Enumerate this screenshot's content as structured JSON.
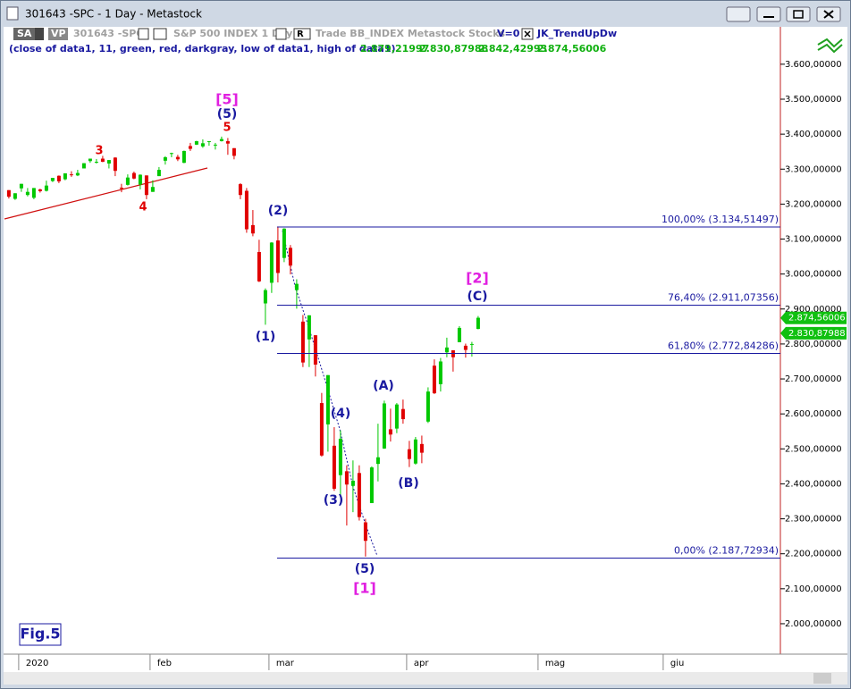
{
  "window": {
    "title": "301643 -SPC - 1 Day - Metastock"
  },
  "toolbar": {
    "sa": "SA",
    "vp": "VP",
    "symbol": "301643 -SPC",
    "name": "S&P 500 INDEX  1 Day",
    "r": "R",
    "source": "Trade  BB_INDEX  Metastock  Stocks",
    "v": "V=0",
    "indicator": "JK_TrendUpDw"
  },
  "indicator_line": {
    "params": "(close of data1, 11, green, red, darkgray, low of data1, high of data1)",
    "values": [
      "2.879,21997",
      "2.830,87988",
      "2.842,42993",
      "2.874,56006"
    ]
  },
  "chart_data": {
    "type": "candlestick",
    "up_color": "#00c800",
    "down_color": "#e00000",
    "open": [
      3240,
      3215,
      3245,
      3226,
      3218,
      3242,
      3238,
      3266,
      3281,
      3271,
      3285,
      3282,
      3302,
      3323,
      3321,
      3330,
      3316,
      3333,
      3247,
      3255,
      3289,
      3256,
      3282,
      3235,
      3280,
      3324,
      3344,
      3335,
      3318,
      3366,
      3370,
      3365,
      3378,
      3370,
      3380,
      3380,
      3360,
      3257,
      3238,
      3140,
      3063,
      2916,
      2975,
      3096,
      3046,
      3075,
      2954,
      2864,
      2813,
      2825,
      2631,
      2570,
      2509,
      2425,
      2436,
      2394,
      2431,
      2290,
      2345,
      2457,
      2501,
      2556,
      2558,
      2614,
      2499,
      2458,
      2514,
      2578,
      2738,
      2685,
      2776,
      2782,
      2805,
      2795,
      2800,
      2843
    ],
    "high": [
      3240,
      3231,
      3258,
      3246,
      3246,
      3244,
      3267,
      3275,
      3282,
      3288,
      3294,
      3298,
      3317,
      3330,
      3329,
      3338,
      3326,
      3334,
      3258,
      3285,
      3293,
      3285,
      3282,
      3268,
      3306,
      3337,
      3347,
      3341,
      3353,
      3375,
      3381,
      3385,
      3380,
      3375,
      3393,
      3389,
      3360,
      3260,
      3246,
      3183,
      3098,
      2959,
      3091,
      3136,
      3131,
      3083,
      2985,
      2883,
      2882,
      2825,
      2660,
      2711,
      2562,
      2553,
      2453,
      2467,
      2453,
      2300,
      2450,
      2572,
      2638,
      2615,
      2631,
      2641,
      2523,
      2534,
      2538,
      2676,
      2756,
      2760,
      2818,
      2782,
      2851,
      2801,
      2806,
      2880
    ],
    "low": [
      3216,
      3212,
      3235,
      3222,
      3214,
      3233,
      3236,
      3263,
      3260,
      3268,
      3278,
      3280,
      3302,
      3318,
      3316,
      3320,
      3302,
      3280,
      3234,
      3253,
      3271,
      3242,
      3214,
      3235,
      3280,
      3313,
      3334,
      3323,
      3317,
      3352,
      3369,
      3361,
      3367,
      3356,
      3379,
      3341,
      3328,
      3214,
      3118,
      3108,
      2977,
      2855,
      2946,
      2976,
      3034,
      2999,
      2901,
      2734,
      2734,
      2707,
      2478,
      2492,
      2380,
      2367,
      2281,
      2319,
      2295,
      2192,
      2345,
      2407,
      2500,
      2521,
      2545,
      2572,
      2448,
      2455,
      2459,
      2574,
      2657,
      2664,
      2762,
      2721,
      2805,
      2761,
      2764,
      2842
    ],
    "close": [
      3221,
      3231,
      3258,
      3235,
      3246,
      3237,
      3253,
      3275,
      3265,
      3288,
      3283,
      3289,
      3317,
      3330,
      3321,
      3321,
      3326,
      3295,
      3244,
      3276,
      3273,
      3284,
      3226,
      3249,
      3298,
      3334,
      3346,
      3328,
      3352,
      3358,
      3380,
      3374,
      3380,
      3370,
      3386,
      3373,
      3338,
      3226,
      3128,
      3116,
      2979,
      2954,
      3090,
      3003,
      3130,
      3024,
      2972,
      2747,
      2882,
      2741,
      2481,
      2711,
      2386,
      2529,
      2398,
      2409,
      2305,
      2237,
      2447,
      2476,
      2630,
      2541,
      2627,
      2585,
      2471,
      2527,
      2489,
      2664,
      2659,
      2750,
      2790,
      2762,
      2846,
      2783,
      2800,
      2875
    ],
    "xlim": [
      -0.7,
      123.3
    ],
    "xticks": [
      {
        "value": 2,
        "label": "2020"
      },
      {
        "value": 23,
        "label": "feb"
      },
      {
        "value": 42,
        "label": "mar"
      },
      {
        "value": 64,
        "label": "apr"
      },
      {
        "value": 85,
        "label": "mag"
      },
      {
        "value": 105,
        "label": "giu"
      }
    ],
    "ylim": [
      1913,
      3707
    ],
    "yticks": [
      {
        "value": 2000,
        "label": "2.000,00000"
      },
      {
        "value": 2100,
        "label": "2.100,00000"
      },
      {
        "value": 2200,
        "label": "2.200,00000"
      },
      {
        "value": 2300,
        "label": "2.300,00000"
      },
      {
        "value": 2400,
        "label": "2.400,00000"
      },
      {
        "value": 2500,
        "label": "2.500,00000"
      },
      {
        "value": 2600,
        "label": "2.600,00000"
      },
      {
        "value": 2700,
        "label": "2.700,00000"
      },
      {
        "value": 2800,
        "label": "2.800,00000"
      },
      {
        "value": 2900,
        "label": "2.900,00000"
      },
      {
        "value": 3000,
        "label": "3.000,00000"
      },
      {
        "value": 3100,
        "label": "3.100,00000"
      },
      {
        "value": 3200,
        "label": "3.200,00000"
      },
      {
        "value": 3300,
        "label": "3.300,00000"
      },
      {
        "value": 3400,
        "label": "3.400,00000"
      },
      {
        "value": 3500,
        "label": "3.500,00000"
      },
      {
        "value": 3600,
        "label": "3.600,00000"
      }
    ],
    "fib_levels": [
      {
        "value": 3134.51497,
        "label": "100,00% (3.134,51497)"
      },
      {
        "value": 2911.07356,
        "label": "76,40% (2.911,07356)"
      },
      {
        "value": 2772.84286,
        "label": "61,80% (2.772,84286)"
      },
      {
        "value": 2187.72934,
        "label": "0,00% (2.187,72934)"
      }
    ],
    "price_markers": [
      {
        "value": 2874.56006,
        "label": "2.874,56006"
      },
      {
        "value": 2830.87988,
        "label": "2.830,87988"
      }
    ],
    "wave_labels": [
      "[5]",
      "(5)",
      "5",
      "3",
      "4",
      "(2)",
      "(1)",
      "[2]",
      "(C)",
      "(A)",
      "(4)",
      "(B)",
      "(3)",
      "(5)",
      "[1]"
    ],
    "fig_label": "Fig.5"
  }
}
